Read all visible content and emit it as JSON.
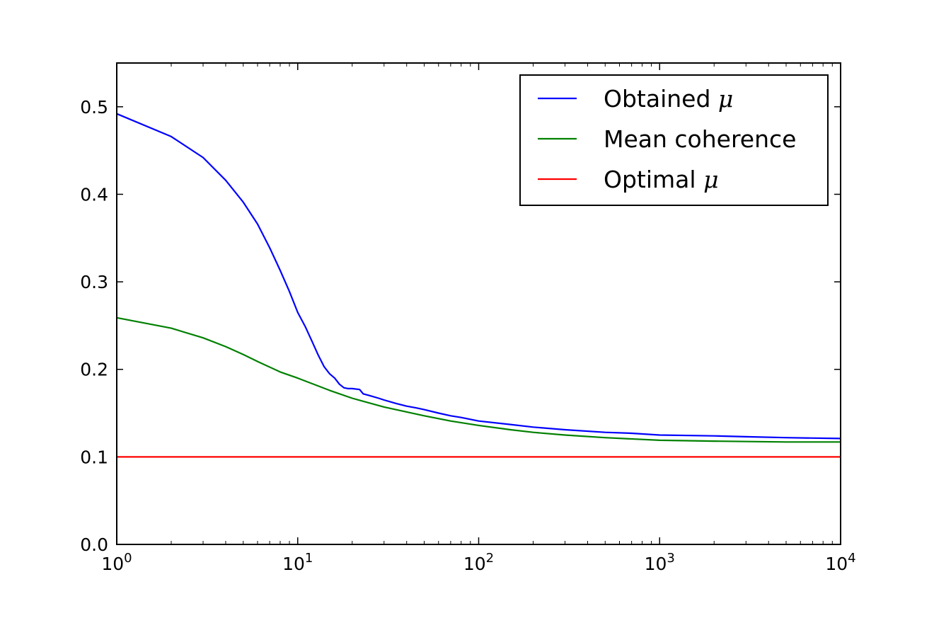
{
  "chart_data": {
    "type": "line",
    "title": "",
    "xlabel": "",
    "ylabel": "",
    "xscale": "log",
    "xlim": [
      1,
      10000
    ],
    "ylim": [
      0.0,
      0.55
    ],
    "grid": false,
    "legend_position": "top-right",
    "x_ticks": [
      {
        "value": 1,
        "base": "10",
        "exp": "0"
      },
      {
        "value": 10,
        "base": "10",
        "exp": "1"
      },
      {
        "value": 100,
        "base": "10",
        "exp": "2"
      },
      {
        "value": 1000,
        "base": "10",
        "exp": "3"
      },
      {
        "value": 10000,
        "base": "10",
        "exp": "4"
      }
    ],
    "y_ticks": [
      {
        "value": 0.0,
        "label": "0.0"
      },
      {
        "value": 0.1,
        "label": "0.1"
      },
      {
        "value": 0.2,
        "label": "0.2"
      },
      {
        "value": 0.3,
        "label": "0.3"
      },
      {
        "value": 0.4,
        "label": "0.4"
      },
      {
        "value": 0.5,
        "label": "0.5"
      }
    ],
    "series": [
      {
        "name": "Obtained ",
        "name_symbol": "μ",
        "color": "#0000ff",
        "x": [
          1,
          2,
          3,
          4,
          5,
          6,
          7,
          8,
          9,
          10,
          11,
          12,
          13,
          14,
          15,
          16,
          17,
          18,
          19,
          20,
          22,
          23,
          25,
          28,
          30,
          35,
          40,
          45,
          50,
          60,
          70,
          80,
          100,
          150,
          200,
          300,
          500,
          700,
          1000,
          2000,
          3000,
          5000,
          10000
        ],
        "y": [
          0.492,
          0.466,
          0.442,
          0.416,
          0.391,
          0.366,
          0.339,
          0.313,
          0.289,
          0.265,
          0.249,
          0.232,
          0.216,
          0.203,
          0.195,
          0.19,
          0.183,
          0.179,
          0.178,
          0.178,
          0.177,
          0.172,
          0.17,
          0.167,
          0.165,
          0.161,
          0.158,
          0.156,
          0.154,
          0.15,
          0.147,
          0.145,
          0.141,
          0.137,
          0.134,
          0.131,
          0.128,
          0.127,
          0.125,
          0.124,
          0.123,
          0.122,
          0.121
        ]
      },
      {
        "name": "Mean coherence",
        "color": "#008000",
        "x": [
          1,
          2,
          3,
          4,
          5,
          6,
          8,
          10,
          15,
          20,
          30,
          50,
          70,
          100,
          150,
          200,
          300,
          500,
          1000,
          2000,
          5000,
          10000
        ],
        "y": [
          0.259,
          0.247,
          0.236,
          0.226,
          0.217,
          0.209,
          0.197,
          0.19,
          0.176,
          0.167,
          0.157,
          0.147,
          0.141,
          0.136,
          0.131,
          0.128,
          0.125,
          0.122,
          0.119,
          0.118,
          0.117,
          0.117
        ]
      },
      {
        "name": "Optimal ",
        "name_symbol": "μ",
        "color": "#ff0000",
        "x": [
          1,
          10000
        ],
        "y": [
          0.1,
          0.1
        ]
      }
    ]
  }
}
